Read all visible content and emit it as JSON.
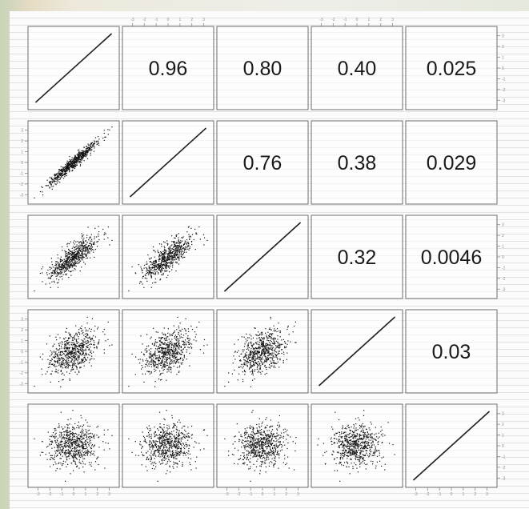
{
  "chart_data": {
    "type": "scatter",
    "title": "",
    "layout": "scatterplot-matrix",
    "dimensions": 5,
    "upper_panels": "correlation-coefficients",
    "diagonal_panels": "identity-line",
    "lower_panels": "scatter",
    "variable_labels": [],
    "correlations": [
      {
        "row": 1,
        "col": 2,
        "value": 0.96,
        "label": "0.96"
      },
      {
        "row": 1,
        "col": 3,
        "value": 0.8,
        "label": "0.80"
      },
      {
        "row": 1,
        "col": 4,
        "value": 0.4,
        "label": "0.40"
      },
      {
        "row": 1,
        "col": 5,
        "value": 0.025,
        "label": "0.025"
      },
      {
        "row": 2,
        "col": 3,
        "value": 0.76,
        "label": "0.76"
      },
      {
        "row": 2,
        "col": 4,
        "value": 0.38,
        "label": "0.38"
      },
      {
        "row": 2,
        "col": 5,
        "value": 0.029,
        "label": "0.029"
      },
      {
        "row": 3,
        "col": 4,
        "value": 0.32,
        "label": "0.32"
      },
      {
        "row": 3,
        "col": 5,
        "value": 0.0046,
        "label": "0.0046"
      },
      {
        "row": 4,
        "col": 5,
        "value": 0.03,
        "label": "0.03"
      }
    ],
    "axis_range": [
      -3.5,
      3.5
    ],
    "tick_values": [
      -3,
      -2,
      -1,
      0,
      1,
      2,
      3
    ],
    "tick_labels_legible": false,
    "grid": false
  },
  "colors": {
    "points": "#111111",
    "panel_border": "#6e6e6e",
    "text": "#1a1a1a"
  }
}
